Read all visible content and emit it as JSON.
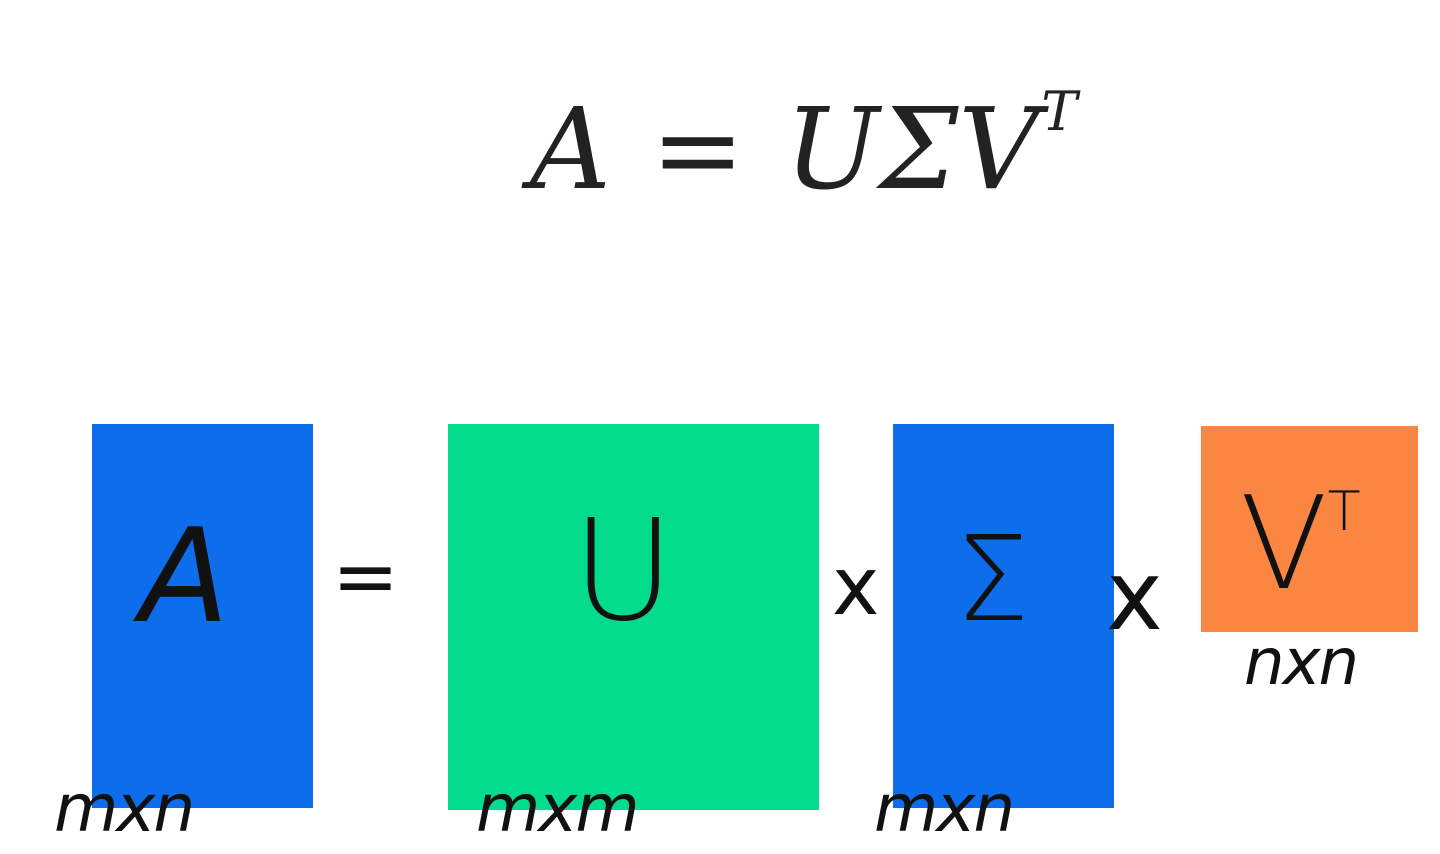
{
  "equation": {
    "lhs": "A",
    "equals": "=",
    "rhs_u": "U",
    "rhs_sigma": "Σ",
    "rhs_v": "V",
    "rhs_v_sup": "T"
  },
  "matrices": {
    "a": {
      "label": "A",
      "dims": "mxn",
      "color": "#0d6dea"
    },
    "u": {
      "label": "U",
      "dims": "mxm",
      "color": "#03dc8c"
    },
    "sigma": {
      "label": "Σ",
      "dims": "mxn",
      "color": "#0d6dea"
    },
    "vt": {
      "label": "V",
      "label_sup": "T",
      "dims": "nxn",
      "color": "#fa8642"
    }
  },
  "operators": {
    "equals": "=",
    "times1": "x",
    "times2": "x"
  }
}
